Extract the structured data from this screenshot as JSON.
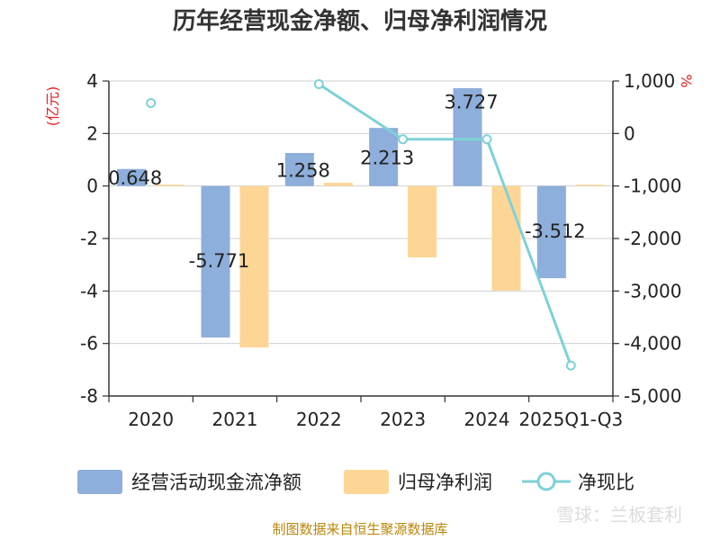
{
  "chart_data": {
    "type": "bar",
    "title": "历年经营现金净额、归母净利润情况",
    "left_unit": "(亿元)",
    "right_unit": "%",
    "categories": [
      "2020",
      "2021",
      "2022",
      "2023",
      "2024",
      "2025Q1-Q3"
    ],
    "ylim": [
      -8,
      4
    ],
    "yticks": [
      4,
      2,
      0,
      -2,
      -4,
      -6,
      -8
    ],
    "y2lim": [
      -5000,
      1000
    ],
    "y2ticks": [
      1000,
      0,
      -1000,
      -2000,
      -3000,
      -4000,
      -5000
    ],
    "y2ticklabels": [
      "1,000",
      "0",
      "-1,000",
      "-2,000",
      "-3,000",
      "-4,000",
      "-5,000"
    ],
    "grid": true,
    "legend_position": "bottom",
    "series": [
      {
        "name": "经营活动现金流净额",
        "kind": "bar",
        "axis": "left",
        "color": "#8eaedb",
        "values": [
          0.648,
          -5.771,
          1.258,
          2.213,
          3.727,
          -3.512
        ],
        "labels": [
          "0.648",
          "-5.771",
          "1.258",
          "2.213",
          "3.727",
          "-3.512"
        ]
      },
      {
        "name": "归母净利润",
        "kind": "bar",
        "axis": "left",
        "color": "#fdd695",
        "values": [
          0.05,
          -6.15,
          0.12,
          -2.72,
          -3.98,
          0.05
        ]
      },
      {
        "name": "净现比",
        "kind": "line",
        "axis": "right",
        "color": "#7fd1d6",
        "values": [
          580,
          null,
          940,
          -110,
          -110,
          -4420
        ]
      }
    ]
  },
  "footer": {
    "source": "制图数据来自恒生聚源数据库",
    "watermark": "雪球：兰板套利"
  }
}
